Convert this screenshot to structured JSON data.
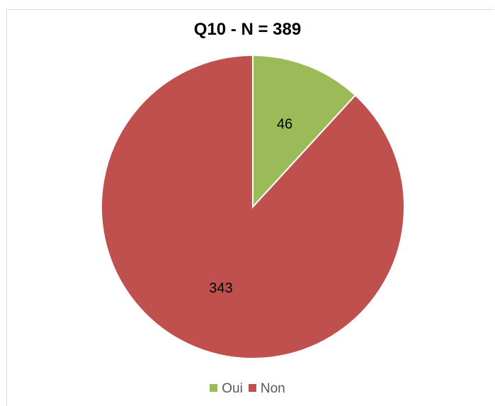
{
  "chart_data": {
    "type": "pie",
    "title": "Q10 - N = 389",
    "categories": [
      "Oui",
      "Non"
    ],
    "values": [
      46,
      343
    ],
    "colors": [
      "#9bbb59",
      "#c0504d"
    ],
    "data_labels": [
      "46",
      "343"
    ],
    "legend_position": "bottom",
    "start_angle_deg": 0,
    "direction": "clockwise"
  }
}
